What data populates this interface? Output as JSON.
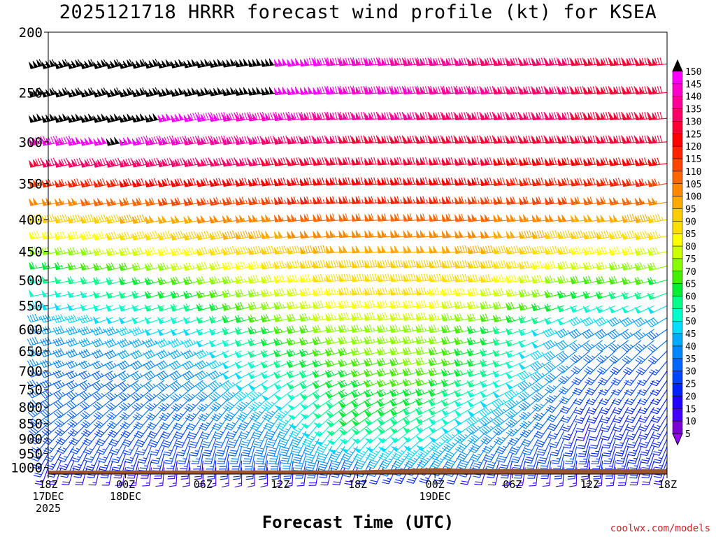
{
  "title": "2025121718 HRRR forecast wind profile (kt) for KSEA",
  "credit": "coolwx.com/models",
  "colors": {
    "ground": "#9a5530",
    "calm_weak": "#7b00d4"
  },
  "chart_data": {
    "type": "wind-barb time-height profile",
    "title": "2025121718 HRRR forecast wind profile (kt) for KSEA",
    "xlabel": "Forecast Time (UTC)",
    "ylabel": "",
    "units": "kt",
    "x_ticks": [
      {
        "hour": 0,
        "label": [
          "18Z",
          "17DEC",
          "2025"
        ]
      },
      {
        "hour": 6,
        "label": [
          "00Z",
          "18DEC"
        ]
      },
      {
        "hour": 12,
        "label": [
          "06Z"
        ]
      },
      {
        "hour": 18,
        "label": [
          "12Z"
        ]
      },
      {
        "hour": 24,
        "label": [
          "18Z"
        ]
      },
      {
        "hour": 30,
        "label": [
          "00Z",
          "19DEC"
        ]
      },
      {
        "hour": 36,
        "label": [
          "06Z"
        ]
      },
      {
        "hour": 42,
        "label": [
          "12Z"
        ]
      },
      {
        "hour": 48,
        "label": [
          "18Z"
        ]
      }
    ],
    "xlim": [
      0,
      48
    ],
    "y_scale": "log-pressure",
    "ylim_hpa": [
      1025,
      200
    ],
    "y_ticks": [
      200,
      250,
      300,
      350,
      400,
      450,
      500,
      550,
      600,
      650,
      700,
      750,
      800,
      850,
      900,
      950,
      1000
    ],
    "levels_hpa": [
      1000,
      975,
      950,
      925,
      900,
      875,
      850,
      825,
      800,
      775,
      750,
      725,
      700,
      675,
      650,
      625,
      600,
      575,
      550,
      525,
      500,
      475,
      450,
      425,
      400,
      375,
      350,
      325,
      300,
      275,
      250,
      225
    ],
    "legend": {
      "placement": "right",
      "values": [
        150,
        145,
        140,
        135,
        130,
        125,
        120,
        115,
        110,
        105,
        100,
        95,
        90,
        85,
        80,
        75,
        70,
        65,
        60,
        55,
        50,
        45,
        40,
        35,
        30,
        25,
        20,
        15,
        10,
        5
      ],
      "colors": [
        "#000000",
        "#ff00ff",
        "#ff00cc",
        "#ff0099",
        "#ff0066",
        "#ff0033",
        "#ff0000",
        "#ff2200",
        "#ff4400",
        "#ff6600",
        "#ff8800",
        "#ffaa00",
        "#ffcc00",
        "#ffdd00",
        "#ffff00",
        "#ccff00",
        "#88ff00",
        "#44ee00",
        "#00ee33",
        "#00ff88",
        "#00ffcc",
        "#00ddff",
        "#00aaff",
        "#0088ff",
        "#0066ff",
        "#0044ff",
        "#0022ff",
        "#2200ff",
        "#4400ff",
        "#7b00d4",
        "#9900ff"
      ]
    },
    "ground_pressure_hpa": [
      {
        "hour": 0,
        "p": 1012
      },
      {
        "hour": 24,
        "p": 1011
      },
      {
        "hour": 30,
        "p": 1003
      },
      {
        "hour": 32,
        "p": 1005
      },
      {
        "hour": 33,
        "p": 1006
      },
      {
        "hour": 48,
        "p": 1007
      }
    ],
    "wind_field_model": {
      "description": "piecewise-linear interpolation in (hour, pressure) of wind speed (kt) and direction (deg from)",
      "knots_hour": [
        0,
        6,
        12,
        18,
        24,
        30,
        36,
        42,
        48
      ],
      "levels": [
        {
          "p": 1000,
          "speed": [
            20,
            15,
            15,
            15,
            20,
            25,
            15,
            15,
            20
          ],
          "dir": [
            200,
            190,
            180,
            180,
            200,
            210,
            190,
            180,
            200
          ]
        },
        {
          "p": 950,
          "speed": [
            25,
            25,
            25,
            35,
            40,
            45,
            30,
            25,
            25
          ],
          "dir": [
            210,
            200,
            190,
            190,
            210,
            220,
            200,
            190,
            200
          ]
        },
        {
          "p": 850,
          "speed": [
            30,
            30,
            30,
            40,
            60,
            55,
            40,
            20,
            25
          ],
          "dir": [
            230,
            220,
            210,
            210,
            230,
            240,
            230,
            200,
            210
          ]
        },
        {
          "p": 700,
          "speed": [
            35,
            35,
            40,
            55,
            65,
            70,
            55,
            30,
            25
          ],
          "dir": [
            250,
            240,
            240,
            245,
            250,
            255,
            250,
            220,
            215
          ]
        },
        {
          "p": 600,
          "speed": [
            40,
            45,
            50,
            65,
            75,
            75,
            60,
            40,
            35
          ],
          "dir": [
            255,
            250,
            250,
            255,
            260,
            260,
            255,
            240,
            235
          ]
        },
        {
          "p": 500,
          "speed": [
            55,
            60,
            70,
            80,
            90,
            90,
            85,
            70,
            65
          ],
          "dir": [
            260,
            255,
            255,
            260,
            265,
            265,
            262,
            258,
            255
          ]
        },
        {
          "p": 400,
          "speed": [
            90,
            95,
            100,
            105,
            110,
            110,
            105,
            100,
            95
          ],
          "dir": [
            260,
            258,
            258,
            262,
            265,
            265,
            263,
            262,
            260
          ]
        },
        {
          "p": 350,
          "speed": [
            115,
            120,
            125,
            125,
            125,
            125,
            120,
            120,
            115
          ],
          "dir": [
            258,
            258,
            260,
            262,
            265,
            265,
            263,
            262,
            260
          ]
        },
        {
          "p": 300,
          "speed": [
            145,
            150,
            140,
            135,
            130,
            130,
            130,
            130,
            130
          ],
          "dir": [
            258,
            258,
            260,
            262,
            265,
            265,
            265,
            265,
            265
          ]
        },
        {
          "p": 250,
          "speed": [
            160,
            160,
            155,
            150,
            145,
            140,
            135,
            130,
            130
          ],
          "dir": [
            255,
            255,
            258,
            262,
            265,
            265,
            265,
            265,
            265
          ]
        },
        {
          "p": 200,
          "speed": [
            160,
            160,
            155,
            150,
            140,
            135,
            130,
            130,
            130
          ],
          "dir": [
            255,
            255,
            258,
            262,
            265,
            265,
            265,
            265,
            265
          ]
        }
      ]
    }
  }
}
